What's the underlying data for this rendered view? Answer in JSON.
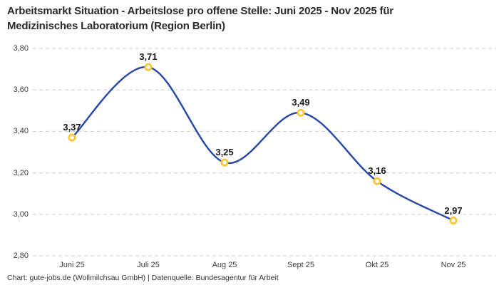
{
  "header": {
    "line1": "Arbeitsmarkt Situation - Arbeitslose pro offene Stelle: Juni 2025 - Nov 2025 für",
    "line2": "Medizinisches Laboratorium (Region Berlin)"
  },
  "footer": {
    "text": "Chart: gute-jobs.de (Wollmilchsau GmbH) | Datenquelle: Bundesagentur für Arbeit"
  },
  "chart_data": {
    "type": "line",
    "title": "Arbeitsmarkt Situation - Arbeitslose pro offene Stelle: Juni 2025 - Nov 2025 für Medizinisches Laboratorium (Region Berlin)",
    "categories": [
      "Juni 25",
      "Juli 25",
      "Aug 25",
      "Sept 25",
      "Okt 25",
      "Nov 25"
    ],
    "values": [
      3.37,
      3.71,
      3.25,
      3.49,
      3.16,
      2.97
    ],
    "value_labels": [
      "3,37",
      "3,71",
      "3,25",
      "3,49",
      "3,16",
      "2,97"
    ],
    "xlabel": "",
    "ylabel": "",
    "ylim": [
      2.8,
      3.8
    ],
    "yticks": [
      2.8,
      3.0,
      3.2,
      3.4,
      3.6,
      3.8
    ],
    "ytick_labels": [
      "2,80",
      "3,00",
      "3,20",
      "3,40",
      "3,60",
      "3,80"
    ],
    "grid": "horizontal-dashed",
    "legend": "none",
    "smooth": true,
    "line_color": "#2746A6",
    "marker_color": "#FCC42D",
    "marker_fill": "#FFFFFF",
    "grid_color": "#CBCBCB",
    "label_color": "#1A1A1A"
  }
}
